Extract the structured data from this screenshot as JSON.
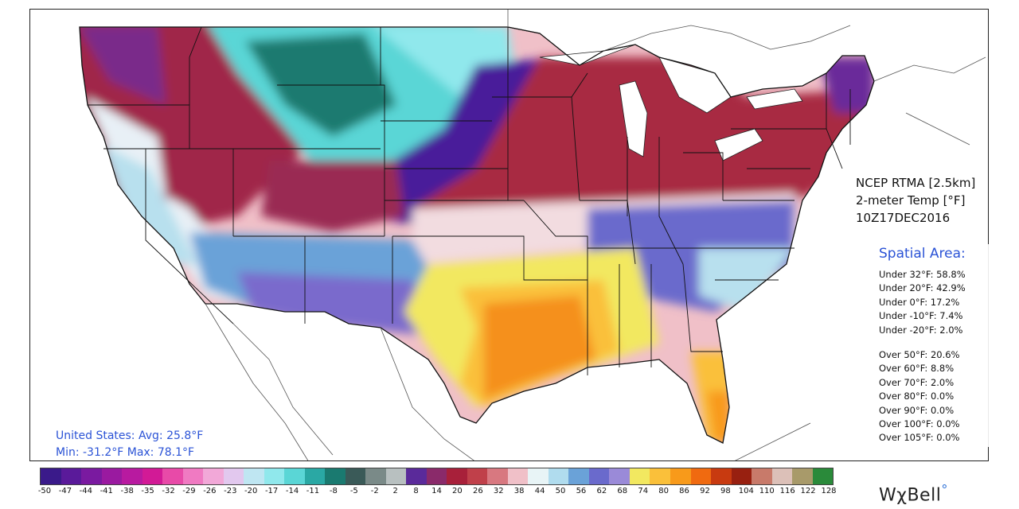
{
  "title": {
    "line1": "NCEP RTMA [2.5km]",
    "line2": "2-meter Temp [°F]",
    "line3": "10Z17DEC2016"
  },
  "spatial": {
    "heading": "Spatial Area:",
    "under": [
      "Under 32°F: 58.8%",
      "Under 20°F: 42.9%",
      "Under 0°F: 17.2%",
      "Under -10°F: 7.4%",
      "Under -20°F: 2.0%"
    ],
    "over": [
      "Over 50°F: 20.6%",
      "Over 60°F: 8.8%",
      "Over 70°F: 2.0%",
      "Over 80°F: 0.0%",
      "Over 90°F: 0.0%",
      "Over 100°F: 0.0%",
      "Over 105°F: 0.0%"
    ]
  },
  "us_stats": {
    "line1": "United States: Avg:  25.8°F",
    "line2": "Min: -31.2°F Max:  78.1°F"
  },
  "colorbar": {
    "ticks": [
      "-50",
      "-47",
      "-44",
      "-41",
      "-38",
      "-35",
      "-32",
      "-29",
      "-26",
      "-23",
      "-20",
      "-17",
      "-14",
      "-11",
      "-8",
      "-5",
      "-2",
      "2",
      "8",
      "14",
      "20",
      "26",
      "32",
      "38",
      "44",
      "50",
      "56",
      "62",
      "68",
      "74",
      "80",
      "86",
      "92",
      "98",
      "104",
      "110",
      "116",
      "122",
      "128"
    ],
    "colors": [
      "#3a1a8a",
      "#5a1a9a",
      "#7a1aa0",
      "#9a1aa0",
      "#b81aa0",
      "#d21a96",
      "#e84aa8",
      "#f07ac2",
      "#f2a8d8",
      "#e2c8ee",
      "#bfe6f2",
      "#90e8ec",
      "#5ad6d6",
      "#2aa8a4",
      "#1a7a70",
      "#3a5a58",
      "#7a8a88",
      "#b8c0c0",
      "#5a2a9a",
      "#8a2a6a",
      "#a8203a",
      "#c0404a",
      "#d87880",
      "#f0c0c8",
      "#e8f4f6",
      "#b0dcee",
      "#6aa2d8",
      "#6a6acc",
      "#9a8ad8",
      "#f2e860",
      "#fac03a",
      "#f89a1a",
      "#f06a10",
      "#c83a10",
      "#982010",
      "#c87a6a",
      "#dcc0b8",
      "#a89a6a",
      "#2a8a3a"
    ]
  },
  "brand": {
    "name": "WχBell",
    "mark": "°"
  },
  "map": {
    "description_free": true,
    "regions": [
      {
        "name": "northwest-cold",
        "color": "#8a2a6a"
      },
      {
        "name": "rockies-teal",
        "color": "#5ad6d6"
      },
      {
        "name": "plains-purple",
        "color": "#4a1a9a"
      },
      {
        "name": "midwest-red",
        "color": "#a02840"
      },
      {
        "name": "mid-pink",
        "color": "#f0c0c8"
      },
      {
        "name": "southeast-blue",
        "color": "#6a6acc"
      },
      {
        "name": "south-yellow",
        "color": "#f2e860"
      },
      {
        "name": "gulf-orange",
        "color": "#f89a1a"
      }
    ]
  }
}
